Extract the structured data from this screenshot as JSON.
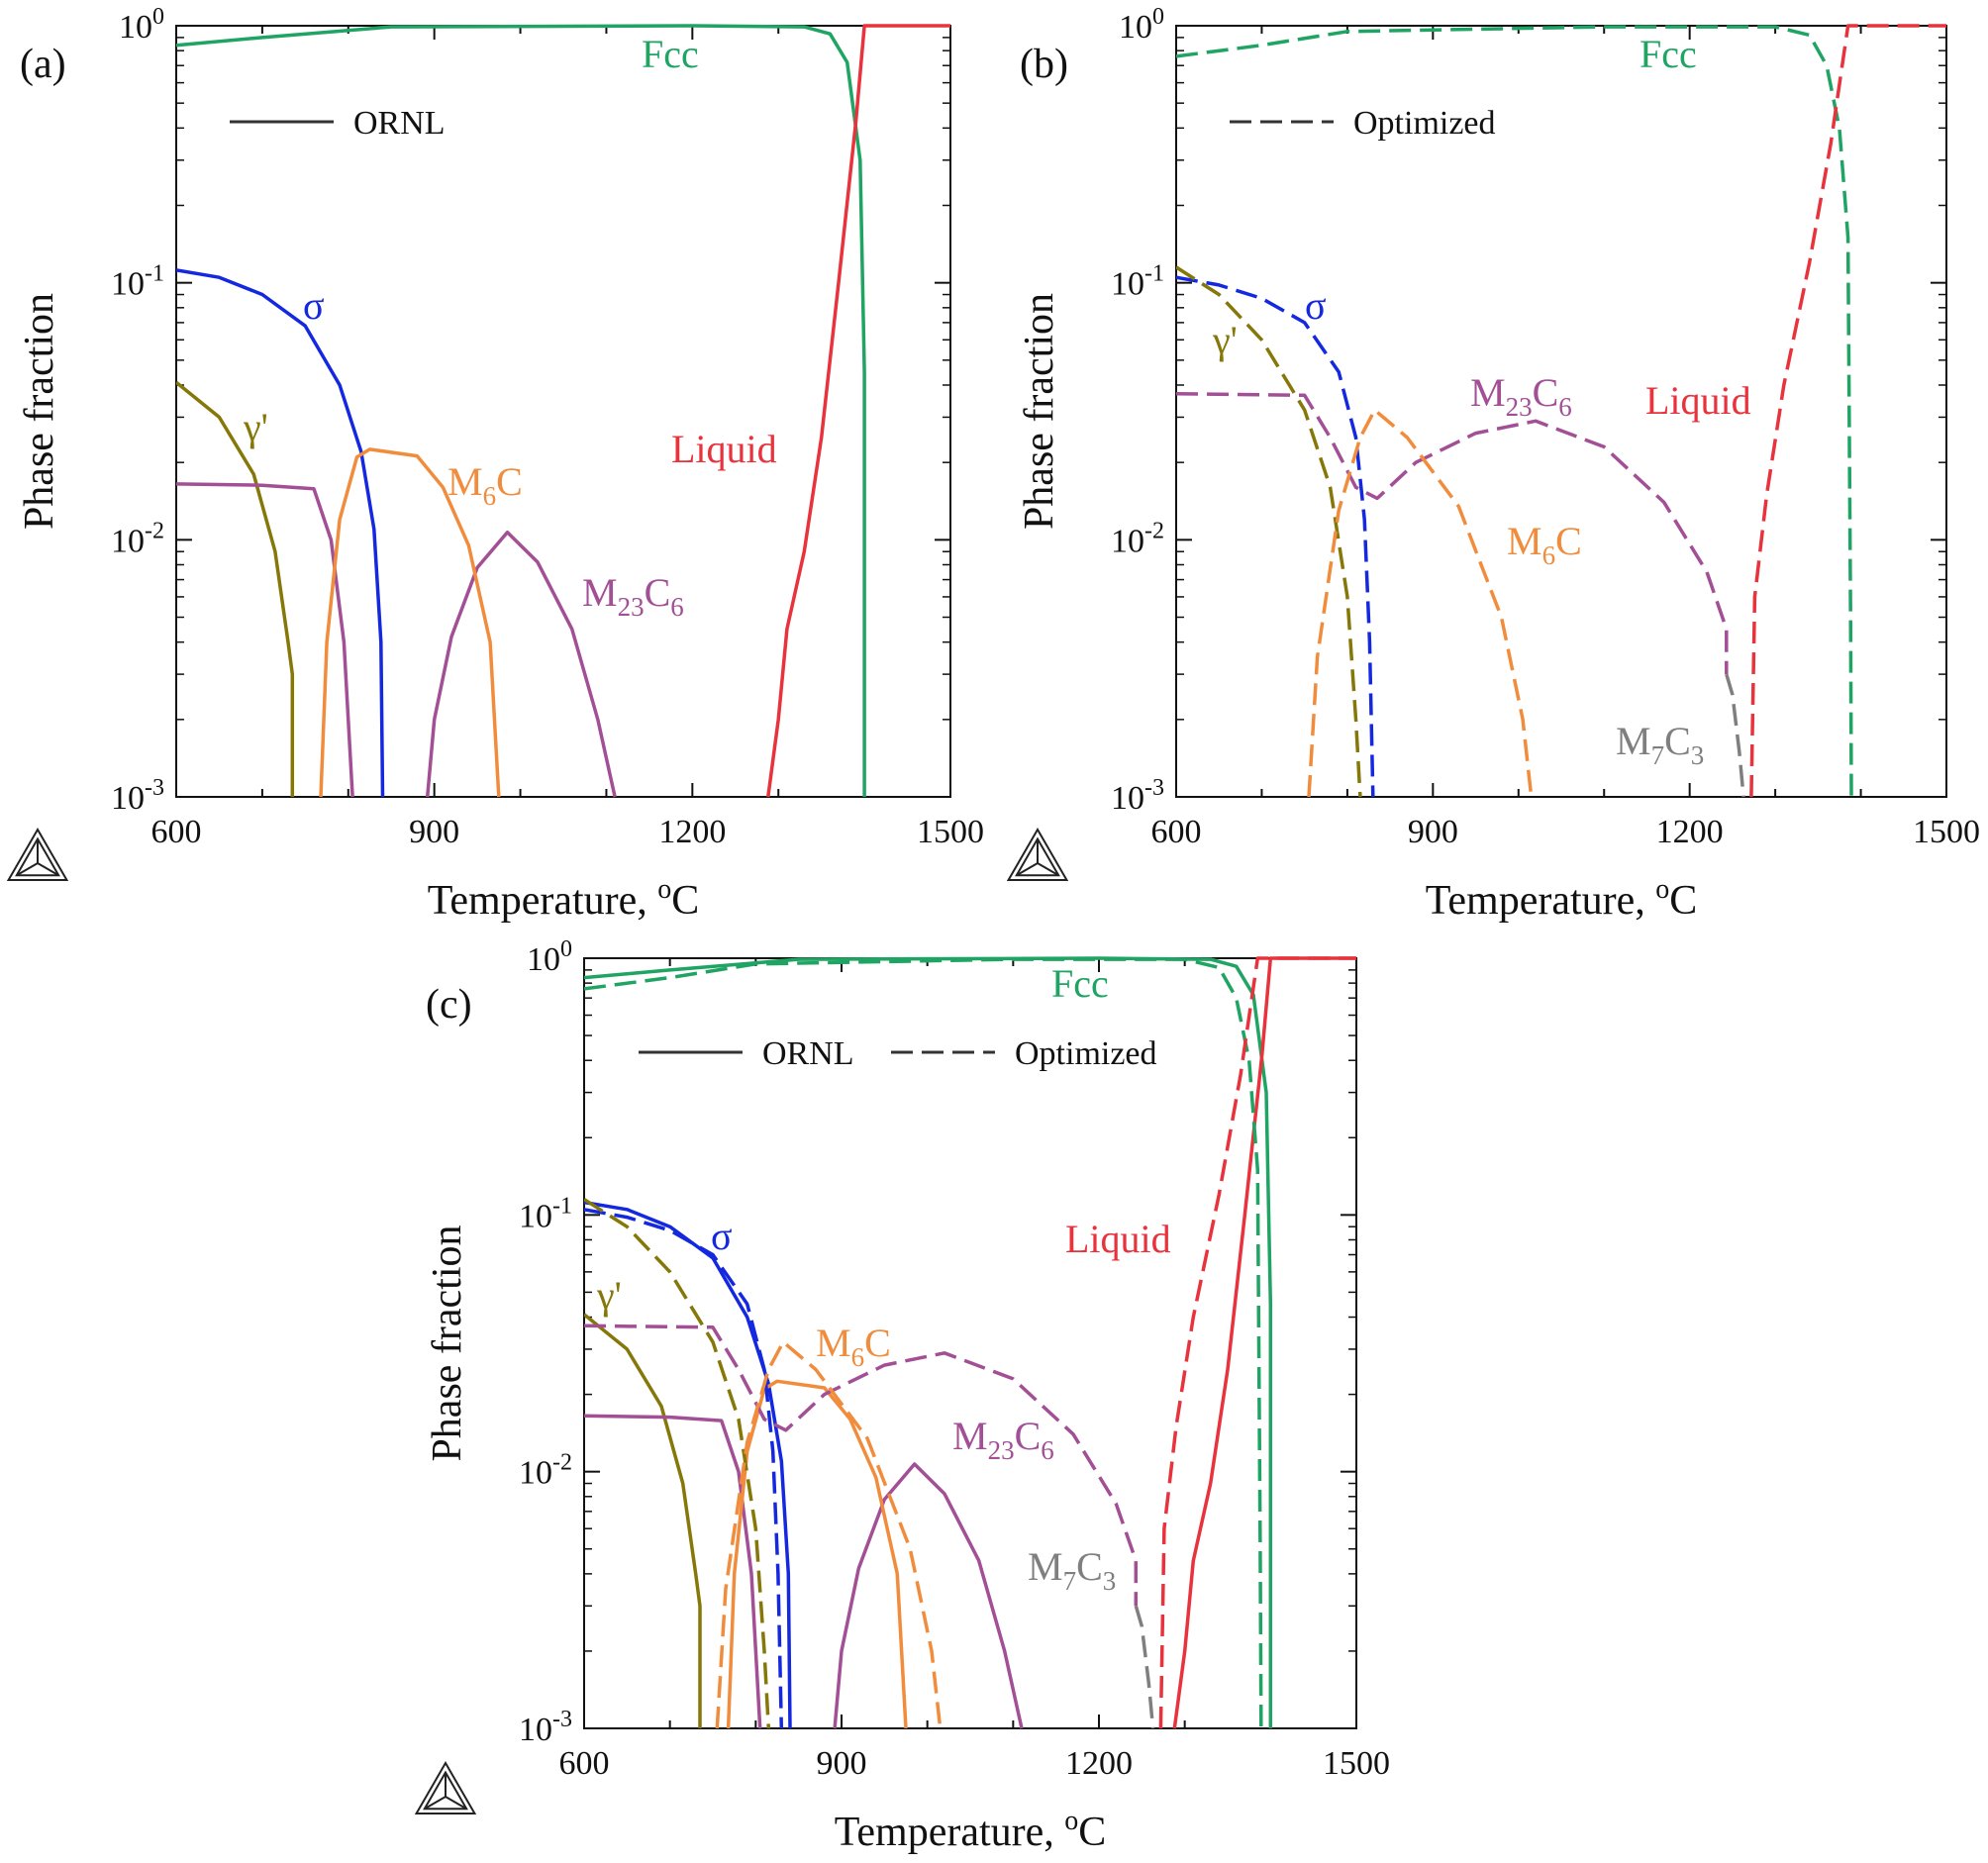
{
  "figure": {
    "x_axis_title": "Temperature, °C",
    "y_axis_title": "Phase fraction",
    "colors": {
      "Fcc": "#1fa463",
      "Liquid": "#e8323c",
      "sigma": "#1428e0",
      "gamma_prime": "#857708",
      "M6C": "#f18c3c",
      "M23C6": "#a24f96",
      "M7C3": "#7f7f7f"
    }
  },
  "chart_data": [
    {
      "type": "line",
      "id": "a",
      "panel_label": "(a)",
      "title": "",
      "xlabel": "Temperature, °C",
      "ylabel": "Phase fraction",
      "xlim": [
        600,
        1500
      ],
      "ylim": [
        0.001,
        1
      ],
      "yscale": "log",
      "x_ticks": [
        "600",
        "900",
        "1200",
        "1500"
      ],
      "y_ticks": [
        {
          "base": "10",
          "exp": "-3"
        },
        {
          "base": "10",
          "exp": "-2"
        },
        {
          "base": "10",
          "exp": "-1"
        },
        {
          "base": "10",
          "exp": "0"
        }
      ],
      "legend": [
        {
          "label": "ORNL",
          "style": "solid"
        }
      ],
      "series": [
        {
          "name": "Fcc",
          "source": "ORNL",
          "style": "solid",
          "color_key": "Fcc",
          "points": [
            [
              600,
              0.84
            ],
            [
              700,
              0.9
            ],
            [
              850,
              0.99
            ],
            [
              1200,
              1.0
            ],
            [
              1330,
              0.99
            ],
            [
              1360,
              0.93
            ],
            [
              1380,
              0.72
            ],
            [
              1395,
              0.3
            ],
            [
              1400,
              0.045
            ],
            [
              1400,
              0.001
            ]
          ]
        },
        {
          "name": "Liquid",
          "source": "ORNL",
          "style": "solid",
          "color_key": "Liquid",
          "points": [
            [
              1288,
              0.001
            ],
            [
              1300,
              0.002
            ],
            [
              1310,
              0.0045
            ],
            [
              1330,
              0.009
            ],
            [
              1350,
              0.025
            ],
            [
              1370,
              0.1
            ],
            [
              1390,
              0.42
            ],
            [
              1400,
              1.0
            ],
            [
              1500,
              1.0
            ]
          ]
        },
        {
          "name": "σ",
          "source": "ORNL",
          "style": "solid",
          "color_key": "sigma",
          "points": [
            [
              600,
              0.112
            ],
            [
              650,
              0.105
            ],
            [
              700,
              0.09
            ],
            [
              750,
              0.068
            ],
            [
              790,
              0.04
            ],
            [
              815,
              0.022
            ],
            [
              830,
              0.011
            ],
            [
              838,
              0.004
            ],
            [
              840,
              0.001
            ]
          ]
        },
        {
          "name": "γ'",
          "source": "ORNL",
          "style": "solid",
          "color_key": "gamma_prime",
          "points": [
            [
              600,
              0.041
            ],
            [
              650,
              0.03
            ],
            [
              690,
              0.018
            ],
            [
              715,
              0.009
            ],
            [
              730,
              0.004
            ],
            [
              735,
              0.003
            ],
            [
              735,
              0.001
            ]
          ]
        },
        {
          "name": "M23C6",
          "source": "ORNL",
          "style": "solid",
          "color_key": "M23C6",
          "points": [
            [
              600,
              0.0165
            ],
            [
              700,
              0.0163
            ],
            [
              760,
              0.0158
            ],
            [
              780,
              0.01
            ],
            [
              795,
              0.004
            ],
            [
              805,
              0.001
            ]
          ]
        },
        {
          "name": "M23C6",
          "source": "ORNL",
          "style": "solid",
          "color_key": "M23C6",
          "points": [
            [
              892,
              0.001
            ],
            [
              900,
              0.002
            ],
            [
              920,
              0.0042
            ],
            [
              950,
              0.0078
            ],
            [
              985,
              0.0107
            ],
            [
              1020,
              0.0082
            ],
            [
              1060,
              0.0045
            ],
            [
              1090,
              0.002
            ],
            [
              1110,
              0.001
            ]
          ]
        },
        {
          "name": "M6C",
          "source": "ORNL",
          "style": "solid",
          "color_key": "M6C",
          "points": [
            [
              768,
              0.001
            ],
            [
              775,
              0.004
            ],
            [
              790,
              0.012
            ],
            [
              810,
              0.021
            ],
            [
              825,
              0.0225
            ],
            [
              880,
              0.0212
            ],
            [
              910,
              0.016
            ],
            [
              940,
              0.0095
            ],
            [
              965,
              0.004
            ],
            [
              975,
              0.001
            ]
          ]
        }
      ],
      "phase_labels": [
        {
          "text": "Fcc",
          "color_key": "Fcc"
        },
        {
          "text": "σ",
          "color_key": "sigma"
        },
        {
          "text": "γ'",
          "color_key": "gamma_prime"
        },
        {
          "text": "Liquid",
          "color_key": "Liquid"
        },
        {
          "text": "M6C",
          "main": "M",
          "sub": "6",
          "main2": "C",
          "color_key": "M6C"
        },
        {
          "text": "M23C6",
          "main": "M",
          "sub": "23",
          "main2": "C",
          "sub2": "6",
          "color_key": "M23C6"
        }
      ]
    },
    {
      "type": "line",
      "id": "b",
      "panel_label": "(b)",
      "title": "",
      "xlabel": "Temperature, °C",
      "ylabel": "Phase fraction",
      "xlim": [
        600,
        1500
      ],
      "ylim": [
        0.001,
        1
      ],
      "yscale": "log",
      "x_ticks": [
        "600",
        "900",
        "1200",
        "1500"
      ],
      "y_ticks": [
        {
          "base": "10",
          "exp": "-3"
        },
        {
          "base": "10",
          "exp": "-2"
        },
        {
          "base": "10",
          "exp": "-1"
        },
        {
          "base": "10",
          "exp": "0"
        }
      ],
      "legend": [
        {
          "label": "Optimized",
          "style": "dashed"
        }
      ],
      "series": [
        {
          "name": "Fcc",
          "source": "Optimized",
          "style": "dashed",
          "color_key": "Fcc",
          "points": [
            [
              600,
              0.76
            ],
            [
              700,
              0.84
            ],
            [
              800,
              0.95
            ],
            [
              1100,
              0.99
            ],
            [
              1300,
              0.99
            ],
            [
              1340,
              0.92
            ],
            [
              1360,
              0.7
            ],
            [
              1375,
              0.4
            ],
            [
              1385,
              0.15
            ],
            [
              1388,
              0.005
            ],
            [
              1389,
              0.001
            ]
          ]
        },
        {
          "name": "Liquid",
          "source": "Optimized",
          "style": "dashed",
          "color_key": "Liquid",
          "points": [
            [
              1272,
              0.001
            ],
            [
              1276,
              0.006
            ],
            [
              1290,
              0.015
            ],
            [
              1310,
              0.04
            ],
            [
              1340,
              0.12
            ],
            [
              1365,
              0.35
            ],
            [
              1385,
              1.0
            ],
            [
              1500,
              1.0
            ]
          ]
        },
        {
          "name": "σ",
          "source": "Optimized",
          "style": "dashed",
          "color_key": "sigma",
          "points": [
            [
              600,
              0.105
            ],
            [
              650,
              0.098
            ],
            [
              700,
              0.087
            ],
            [
              750,
              0.07
            ],
            [
              790,
              0.045
            ],
            [
              810,
              0.025
            ],
            [
              820,
              0.012
            ],
            [
              826,
              0.004
            ],
            [
              830,
              0.001
            ]
          ]
        },
        {
          "name": "γ'",
          "source": "Optimized",
          "style": "dashed",
          "color_key": "gamma_prime",
          "points": [
            [
              600,
              0.115
            ],
            [
              650,
              0.09
            ],
            [
              700,
              0.06
            ],
            [
              750,
              0.032
            ],
            [
              780,
              0.016
            ],
            [
              800,
              0.006
            ],
            [
              810,
              0.002
            ],
            [
              815,
              0.001
            ]
          ]
        },
        {
          "name": "M23C6",
          "source": "Optimized",
          "style": "dashed",
          "color_key": "M23C6",
          "points": [
            [
              600,
              0.037
            ],
            [
              750,
              0.0365
            ],
            [
              780,
              0.025
            ],
            [
              810,
              0.016
            ],
            [
              835,
              0.0145
            ],
            [
              880,
              0.02
            ],
            [
              950,
              0.026
            ],
            [
              1020,
              0.029
            ],
            [
              1100,
              0.023
            ],
            [
              1170,
              0.014
            ],
            [
              1220,
              0.0075
            ],
            [
              1243,
              0.0045
            ],
            [
              1243,
              0.003
            ]
          ]
        },
        {
          "name": "M6C",
          "source": "Optimized",
          "style": "dashed",
          "color_key": "M6C",
          "points": [
            [
              755,
              0.001
            ],
            [
              765,
              0.0035
            ],
            [
              790,
              0.013
            ],
            [
              815,
              0.025
            ],
            [
              832,
              0.032
            ],
            [
              870,
              0.025
            ],
            [
              930,
              0.0135
            ],
            [
              980,
              0.005
            ],
            [
              1005,
              0.002
            ],
            [
              1015,
              0.001
            ]
          ]
        },
        {
          "name": "M7C3",
          "source": "Optimized",
          "style": "dashed",
          "color_key": "M7C3",
          "points": [
            [
              1243,
              0.003
            ],
            [
              1250,
              0.0025
            ],
            [
              1258,
              0.0015
            ],
            [
              1263,
              0.001
            ]
          ]
        }
      ],
      "phase_labels": [
        {
          "text": "Fcc",
          "color_key": "Fcc"
        },
        {
          "text": "σ",
          "color_key": "sigma"
        },
        {
          "text": "γ'",
          "color_key": "gamma_prime"
        },
        {
          "text": "Liquid",
          "color_key": "Liquid"
        },
        {
          "text": "M6C",
          "main": "M",
          "sub": "6",
          "main2": "C",
          "color_key": "M6C"
        },
        {
          "text": "M23C6",
          "main": "M",
          "sub": "23",
          "main2": "C",
          "sub2": "6",
          "color_key": "M23C6"
        },
        {
          "text": "M7C3",
          "main": "M",
          "sub": "7",
          "main2": "C",
          "sub2": "3",
          "color_key": "M7C3"
        }
      ]
    },
    {
      "type": "line",
      "id": "c",
      "panel_label": "(c)",
      "title": "",
      "xlabel": "Temperature, °C",
      "ylabel": "Phase fraction",
      "xlim": [
        600,
        1500
      ],
      "ylim": [
        0.001,
        1
      ],
      "yscale": "log",
      "x_ticks": [
        "600",
        "900",
        "1200",
        "1500"
      ],
      "y_ticks": [
        {
          "base": "10",
          "exp": "-3"
        },
        {
          "base": "10",
          "exp": "-2"
        },
        {
          "base": "10",
          "exp": "-1"
        },
        {
          "base": "10",
          "exp": "0"
        }
      ],
      "legend": [
        {
          "label": "ORNL",
          "style": "solid"
        },
        {
          "label": "Optimized",
          "style": "dashed"
        }
      ],
      "series_from": [
        "a",
        "b"
      ],
      "phase_labels": [
        {
          "text": "Fcc",
          "color_key": "Fcc"
        },
        {
          "text": "σ",
          "color_key": "sigma"
        },
        {
          "text": "γ'",
          "color_key": "gamma_prime"
        },
        {
          "text": "Liquid",
          "color_key": "Liquid"
        },
        {
          "text": "M6C",
          "main": "M",
          "sub": "6",
          "main2": "C",
          "color_key": "M6C"
        },
        {
          "text": "M23C6",
          "main": "M",
          "sub": "23",
          "main2": "C",
          "sub2": "6",
          "color_key": "M23C6"
        },
        {
          "text": "M7C3",
          "main": "M",
          "sub": "7",
          "main2": "C",
          "sub2": "3",
          "color_key": "M7C3"
        }
      ]
    }
  ]
}
